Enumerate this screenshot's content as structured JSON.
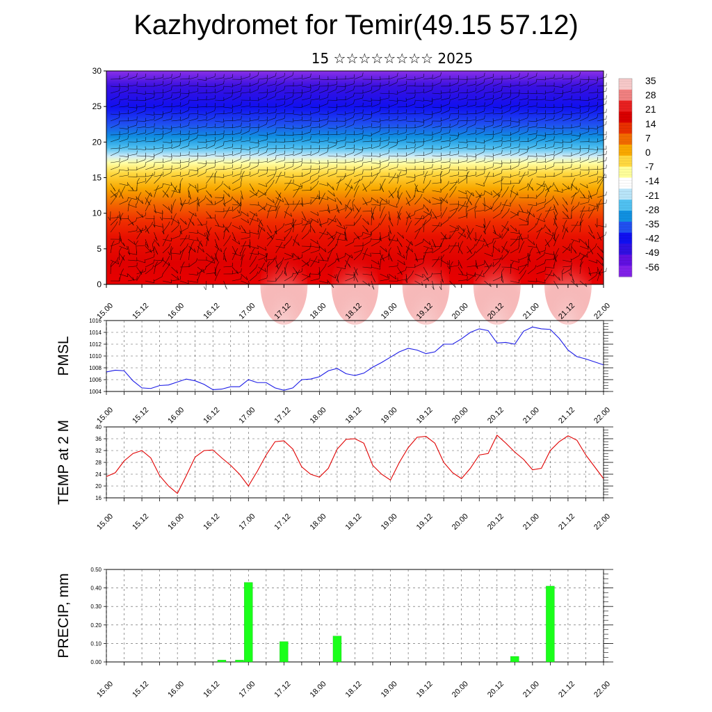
{
  "title": "Kazhydromet for Temir(49.15 57.12)",
  "subtitle": "15 ☆☆☆☆☆☆☆☆ 2025",
  "time_ticks": [
    "15.00",
    "15.12",
    "16.00",
    "16.12",
    "17.00",
    "17.12",
    "18.00",
    "18.12",
    "19.00",
    "19.12",
    "20.00",
    "20.12",
    "21.00",
    "21.12",
    "22.00"
  ],
  "colorbar": {
    "labels": [
      "35",
      "28",
      "21",
      "14",
      "7",
      "0",
      "-7",
      "-14",
      "-21",
      "-28",
      "-35",
      "-42",
      "-49",
      "-56"
    ],
    "stops": [
      "#f6c8c8",
      "#f08080",
      "#e82020",
      "#d80000",
      "#e83000",
      "#f06a00",
      "#f8a800",
      "#ffd840",
      "#ffff9a",
      "#ffffff",
      "#b8e4f8",
      "#50c0f0",
      "#1090e0",
      "#2050f0",
      "#1010f0",
      "#3010e0",
      "#6010e0",
      "#8020e8"
    ]
  },
  "chart_data": [
    {
      "type": "heatmap",
      "title": "",
      "xlabel": "",
      "ylabel": "",
      "x_categories": [
        "15.00",
        "15.12",
        "16.00",
        "16.12",
        "17.00",
        "17.12",
        "18.00",
        "18.12",
        "19.00",
        "19.12",
        "20.00",
        "20.12",
        "21.00",
        "21.12",
        "22.00"
      ],
      "ylim": [
        0,
        30
      ],
      "yticks": [
        "0",
        "5",
        "10",
        "15",
        "20",
        "25",
        "30"
      ],
      "colorbar_range": [
        -56,
        35
      ],
      "overlay": "wind barbs"
    },
    {
      "type": "line",
      "ylabel": "PMSL",
      "ylim": [
        1004,
        1016
      ],
      "yticks": [
        "1004",
        "1006",
        "1008",
        "1010",
        "1012",
        "1014",
        "1016"
      ],
      "color": "#1a1ae6",
      "x_hours": [
        0,
        3,
        6,
        9,
        12,
        15,
        18,
        21,
        24,
        27,
        30,
        33,
        36,
        39,
        42,
        45,
        48,
        51,
        54,
        57,
        60,
        63,
        66,
        69,
        72,
        75,
        78,
        81,
        84,
        87,
        90,
        93,
        96,
        99,
        102,
        105,
        108,
        111,
        114,
        117,
        120,
        123,
        126,
        129,
        132,
        135,
        138,
        141,
        144,
        147,
        150,
        153,
        156,
        159,
        162,
        165,
        168
      ],
      "values": [
        1007.3,
        1007.6,
        1007.5,
        1005.8,
        1004.6,
        1004.5,
        1005.0,
        1005.1,
        1005.6,
        1006.1,
        1005.8,
        1005.2,
        1004.3,
        1004.4,
        1004.8,
        1004.8,
        1006.0,
        1005.5,
        1005.5,
        1004.6,
        1004.2,
        1004.6,
        1006.0,
        1006.1,
        1006.5,
        1007.5,
        1007.9,
        1007.0,
        1006.7,
        1007.1,
        1008.1,
        1008.9,
        1009.8,
        1010.7,
        1011.3,
        1011.0,
        1010.4,
        1010.7,
        1012.0,
        1012.0,
        1012.9,
        1014.0,
        1014.6,
        1014.3,
        1012.2,
        1012.3,
        1012.0,
        1014.2,
        1014.9,
        1014.6,
        1014.5,
        1013.0,
        1011.0,
        1009.9,
        1009.5,
        1009.0,
        1008.5
      ]
    },
    {
      "type": "line",
      "ylabel": "TEMP at 2 M",
      "ylim": [
        16,
        40
      ],
      "yticks": [
        "16",
        "20",
        "24",
        "28",
        "32",
        "36",
        "40"
      ],
      "color": "#e00000",
      "x_hours": [
        0,
        3,
        6,
        9,
        12,
        15,
        18,
        21,
        24,
        27,
        30,
        33,
        36,
        39,
        42,
        45,
        48,
        51,
        54,
        57,
        60,
        63,
        66,
        69,
        72,
        75,
        78,
        81,
        84,
        87,
        90,
        93,
        96,
        99,
        102,
        105,
        108,
        111,
        114,
        117,
        120,
        123,
        126,
        129,
        132,
        135,
        138,
        141,
        144,
        147,
        150,
        153,
        156,
        159,
        162,
        165,
        168
      ],
      "values": [
        23.2,
        24.5,
        28.5,
        31.0,
        32.0,
        29.5,
        23.5,
        20.0,
        17.5,
        23.5,
        29.8,
        32.0,
        32.2,
        29.5,
        27.0,
        24.0,
        20.0,
        25.0,
        30.5,
        35.0,
        35.3,
        32.5,
        26.5,
        24.0,
        23.0,
        26.0,
        32.5,
        35.8,
        36.0,
        34.5,
        27.0,
        24.0,
        22.0,
        28.0,
        33.0,
        36.5,
        36.8,
        34.5,
        28.0,
        24.5,
        22.5,
        26.0,
        30.5,
        31.0,
        37.2,
        34.5,
        31.5,
        29.0,
        25.5,
        26.0,
        32.0,
        35.0,
        37.0,
        35.5,
        30.5,
        26.5,
        22.5
      ]
    },
    {
      "type": "bar",
      "ylabel": "PRECIP, mm",
      "ylim": [
        0,
        0.5
      ],
      "yticks": [
        "0.00",
        "0.10",
        "0.20",
        "0.30",
        "0.40",
        "0.50"
      ],
      "color": "#1aff1a",
      "x_hours": [
        39,
        45,
        48,
        60,
        78,
        138,
        150
      ],
      "values": [
        0.01,
        0.01,
        0.43,
        0.11,
        0.14,
        0.03,
        0.41
      ]
    }
  ]
}
